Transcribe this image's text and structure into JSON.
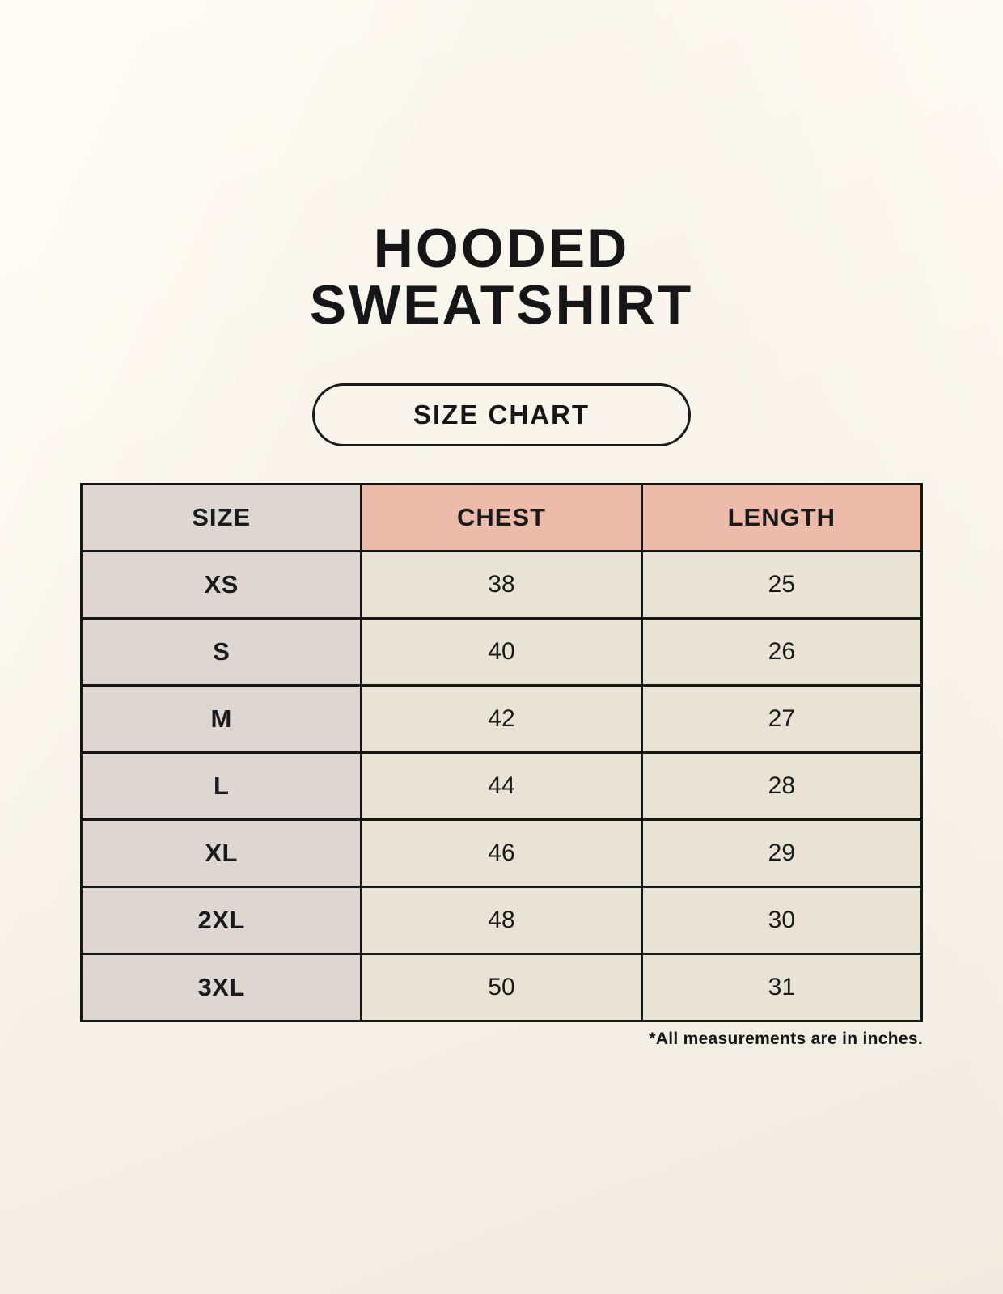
{
  "page": {
    "title_line1": "HOODED",
    "title_line2": "SWEATSHIRT",
    "badge_label": "SIZE CHART",
    "footnote": "*All measurements are in inches."
  },
  "colors": {
    "background": "#f7f3e9",
    "header_accent": "#edbbaa",
    "size_column": "#ded7d1",
    "value_cell": "#e9e3d6",
    "border": "#161616",
    "text": "#1a1a1a"
  },
  "chart_data": {
    "type": "table",
    "title": "HOODED SWEATSHIRT",
    "subtitle": "SIZE CHART",
    "columns": [
      "SIZE",
      "CHEST",
      "LENGTH"
    ],
    "rows": [
      {
        "size": "XS",
        "chest": 38,
        "length": 25
      },
      {
        "size": "S",
        "chest": 40,
        "length": 26
      },
      {
        "size": "M",
        "chest": 42,
        "length": 27
      },
      {
        "size": "L",
        "chest": 44,
        "length": 28
      },
      {
        "size": "XL",
        "chest": 46,
        "length": 29
      },
      {
        "size": "2XL",
        "chest": 48,
        "length": 30
      },
      {
        "size": "3XL",
        "chest": 50,
        "length": 31
      }
    ],
    "note": "*All measurements are in inches."
  }
}
